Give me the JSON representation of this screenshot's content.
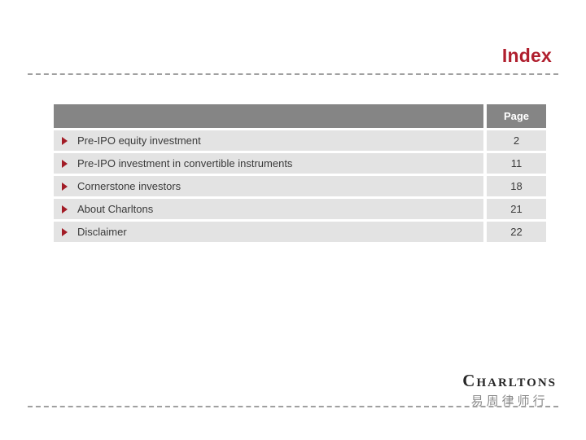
{
  "slide": {
    "title": "Index",
    "table": {
      "page_header": "Page",
      "rows": [
        {
          "topic": "Pre-IPO equity investment",
          "page": "2"
        },
        {
          "topic": "Pre-IPO investment in convertible instruments",
          "page": "11"
        },
        {
          "topic": "Cornerstone investors",
          "page": "18"
        },
        {
          "topic": "About Charltons",
          "page": "21"
        },
        {
          "topic": "Disclaimer",
          "page": "22"
        }
      ]
    },
    "logo": {
      "wordmark": "CHARLTONS",
      "chinese": "易周律师行"
    },
    "colors": {
      "title": "#b01f2e",
      "header_bg": "#858585",
      "row_bg": "#e3e3e3",
      "bullet": "#a21c26",
      "text": "#3a3a3a",
      "dash": "#a0a0a0"
    }
  }
}
